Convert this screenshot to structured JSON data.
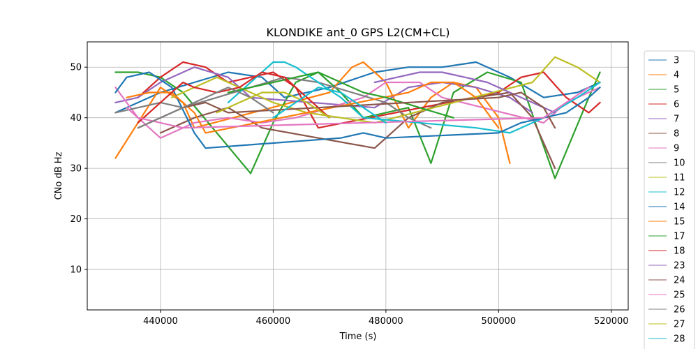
{
  "chart_data": {
    "type": "line",
    "title": "KLONDIKE ant_0 GPS L2(CM+CL)",
    "xlabel": "Time (s)",
    "ylabel": "CNo dB Hz",
    "xlim": [
      427000,
      523000
    ],
    "ylim": [
      2,
      55
    ],
    "xticks": [
      440000,
      460000,
      480000,
      500000,
      520000
    ],
    "yticks": [
      10,
      20,
      30,
      40,
      50
    ],
    "grid": true,
    "legend_position": "outside-right",
    "series": [
      {
        "name": "3",
        "color": "#1f77b4",
        "x": [
          432000,
          440000,
          446000,
          452000,
          458000,
          462000,
          470000,
          478000,
          484000,
          490000,
          496000,
          502000,
          508000,
          514000,
          518000
        ],
        "y": [
          41,
          45,
          47,
          49,
          48,
          44,
          46,
          49,
          50,
          50,
          51,
          48,
          44,
          45,
          47
        ]
      },
      {
        "name": "4",
        "color": "#ff7f0e",
        "x": [
          432000,
          436000,
          440000,
          444000,
          446000,
          470000,
          474000,
          476000,
          480000,
          484000,
          488000,
          492000,
          496000,
          500000,
          502000
        ],
        "y": [
          32,
          39,
          46,
          43,
          38,
          45,
          50,
          51,
          47,
          38,
          44,
          47,
          46,
          40,
          31
        ]
      },
      {
        "name": "5",
        "color": "#2ca02c",
        "x": [
          432000,
          436000,
          440000,
          444000,
          456000,
          460000,
          464000,
          468000,
          472000,
          476000,
          480000,
          484000,
          488000,
          492000,
          498000,
          504000,
          510000,
          516000,
          518000
        ],
        "y": [
          49,
          49,
          48,
          45,
          29,
          39,
          47,
          49,
          45,
          40,
          41,
          42,
          31,
          45,
          49,
          47,
          28,
          44,
          49
        ]
      },
      {
        "name": "6",
        "color": "#d62728",
        "x": [
          436000,
          440000,
          444000,
          448000,
          452000,
          456000,
          460000,
          464000,
          468000,
          500000,
          504000,
          508000,
          512000,
          516000,
          518000
        ],
        "y": [
          44,
          48,
          51,
          50,
          47,
          48,
          49,
          46,
          38,
          45,
          48,
          49,
          44,
          41,
          43
        ]
      },
      {
        "name": "7",
        "color": "#9467bd",
        "x": [
          432000,
          436000,
          440000,
          446000,
          452000,
          456000,
          478000,
          484000,
          490000,
          496000,
          502000,
          506000
        ],
        "y": [
          43,
          44,
          47,
          50,
          48,
          44,
          42,
          46,
          47,
          46,
          44,
          41
        ]
      },
      {
        "name": "8",
        "color": "#8c564b",
        "x": [
          440000,
          446000,
          452000,
          458000,
          478000,
          484000,
          490000,
          496000,
          502000,
          506000,
          510000
        ],
        "y": [
          37,
          40,
          42,
          38,
          34,
          40,
          43,
          44,
          45,
          40,
          30
        ]
      },
      {
        "name": "9",
        "color": "#e377c2",
        "x": [
          432000,
          436000,
          440000,
          446000,
          452000,
          458000,
          464000,
          470000,
          476000,
          480000,
          486000,
          490000,
          508000,
          512000,
          518000
        ],
        "y": [
          46,
          40,
          36,
          39,
          40,
          39,
          40,
          42,
          44,
          47,
          47,
          44,
          39,
          43,
          46
        ]
      },
      {
        "name": "10",
        "color": "#7f7f7f",
        "x": [
          432000,
          436000,
          440000,
          444000,
          450000,
          456000,
          462000,
          468000,
          474000,
          480000,
          484000,
          488000
        ],
        "y": [
          41,
          42,
          43,
          42,
          44,
          46,
          48,
          47,
          45,
          43,
          40,
          38
        ]
      },
      {
        "name": "11",
        "color": "#bcbd22",
        "x": [
          442000,
          446000,
          450000,
          454000,
          460000,
          466000,
          472000,
          478000,
          506000,
          510000,
          514000,
          518000
        ],
        "y": [
          44,
          46,
          48,
          46,
          43,
          41,
          40,
          39,
          47,
          52,
          50,
          47
        ]
      },
      {
        "name": "12",
        "color": "#17becf",
        "x": [
          452000,
          456000,
          460000,
          462000,
          464000,
          468000,
          472000,
          476000,
          496000,
          502000,
          508000,
          514000,
          518000
        ],
        "y": [
          43,
          47,
          51,
          51,
          50,
          47,
          44,
          40,
          38,
          37,
          40,
          44,
          47
        ]
      },
      {
        "name": "14",
        "color": "#1f77b4",
        "x": [
          432000,
          434000,
          438000,
          442000,
          446000,
          448000,
          472000,
          476000,
          480000,
          500000,
          504000,
          508000,
          512000,
          516000,
          518000
        ],
        "y": [
          45,
          48,
          49,
          46,
          37,
          34,
          36,
          37,
          36,
          37,
          39,
          40,
          41,
          44,
          46
        ]
      },
      {
        "name": "15",
        "color": "#ff7f0e",
        "x": [
          434000,
          438000,
          442000,
          446000,
          448000,
          484000,
          488000,
          492000,
          496000,
          500000
        ],
        "y": [
          44,
          45,
          45,
          41,
          37,
          45,
          47,
          47,
          44,
          38
        ]
      },
      {
        "name": "17",
        "color": "#2ca02c",
        "x": [
          452000,
          456000,
          460000,
          464000,
          468000,
          472000,
          476000,
          480000,
          486000,
          492000
        ],
        "y": [
          45,
          46,
          47,
          48,
          49,
          47,
          45,
          44,
          42,
          40
        ]
      },
      {
        "name": "18",
        "color": "#d62728",
        "x": [
          436000,
          440000,
          444000,
          446000,
          450000,
          454000,
          458000,
          462000,
          466000,
          470000
        ],
        "y": [
          39,
          43,
          47,
          46,
          45,
          46,
          49,
          48,
          44,
          40
        ]
      },
      {
        "name": "23",
        "color": "#9467bd",
        "x": [
          478000,
          482000,
          486000,
          490000,
          494000,
          498000,
          502000,
          506000,
          510000
        ],
        "y": [
          47,
          48,
          49,
          49,
          48,
          47,
          45,
          43,
          41
        ]
      },
      {
        "name": "24",
        "color": "#8c564b",
        "x": [
          436000,
          440000,
          444000,
          448000,
          452000,
          500000,
          504000,
          508000,
          510000
        ],
        "y": [
          38,
          40,
          42,
          43,
          41,
          44,
          45,
          42,
          38
        ]
      },
      {
        "name": "25",
        "color": "#e377c2",
        "x": [
          434000,
          436000,
          440000,
          444000,
          508000,
          512000,
          516000
        ],
        "y": [
          42,
          40,
          39,
          38,
          40,
          43,
          46
        ]
      },
      {
        "name": "26",
        "color": "#7f7f7f",
        "x": [
          436000,
          440000,
          444000,
          448000,
          452000,
          456000,
          460000
        ],
        "y": [
          38,
          40,
          42,
          44,
          46,
          44,
          41
        ]
      },
      {
        "name": "27",
        "color": "#bcbd22",
        "x": [
          450000,
          454000,
          458000,
          462000,
          466000,
          470000
        ],
        "y": [
          41,
          43,
          45,
          45,
          43,
          40
        ]
      },
      {
        "name": "28",
        "color": "#17becf",
        "x": [
          460000,
          464000,
          468000,
          472000,
          476000,
          480000
        ],
        "y": [
          40,
          43,
          46,
          45,
          42,
          39
        ]
      }
    ]
  }
}
